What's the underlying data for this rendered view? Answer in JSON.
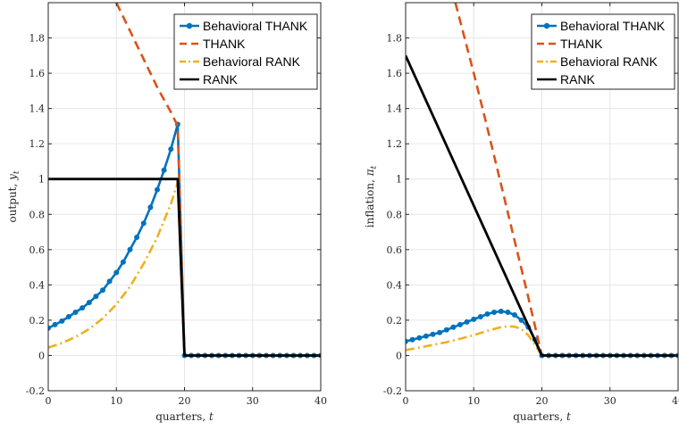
{
  "chart_data": [
    {
      "type": "line",
      "xlabel": "quarters, t",
      "ylabel": "output, y_t",
      "xlim": [
        0,
        40
      ],
      "ylim": [
        -0.2,
        2.0
      ],
      "xticks": [
        0,
        10,
        20,
        30,
        40
      ],
      "yticks": [
        -0.2,
        0,
        0.2,
        0.4,
        0.6,
        0.8,
        1,
        1.2,
        1.4,
        1.6,
        1.8
      ],
      "ytick_labels": [
        "-0.2",
        "0",
        "0.2",
        "0.4",
        "0.6",
        "0.8",
        "1",
        "1.2",
        "1.4",
        "1.6",
        "1.8"
      ],
      "grid": true,
      "legend_position": "top-right",
      "series": [
        {
          "name": "Behavioral THANK",
          "color": "#0072BD",
          "style": "solid-markers",
          "x": [
            0,
            1,
            2,
            3,
            4,
            5,
            6,
            7,
            8,
            9,
            10,
            11,
            12,
            13,
            14,
            15,
            16,
            17,
            18,
            19,
            20,
            21,
            22,
            23,
            24,
            25,
            26,
            27,
            28,
            29,
            30,
            31,
            32,
            33,
            34,
            35,
            36,
            37,
            38,
            39,
            40
          ],
          "y": [
            0.155,
            0.175,
            0.195,
            0.22,
            0.245,
            0.27,
            0.3,
            0.335,
            0.37,
            0.42,
            0.47,
            0.53,
            0.6,
            0.67,
            0.75,
            0.84,
            0.94,
            1.05,
            1.17,
            1.31,
            0,
            0,
            0,
            0,
            0,
            0,
            0,
            0,
            0,
            0,
            0,
            0,
            0,
            0,
            0,
            0,
            0,
            0,
            0,
            0,
            0
          ]
        },
        {
          "name": "THANK",
          "color": "#D95319",
          "style": "dashed",
          "x": [
            10,
            12,
            14,
            16,
            18,
            19,
            20
          ],
          "y": [
            2.0,
            1.84,
            1.68,
            1.52,
            1.38,
            1.3,
            0
          ]
        },
        {
          "name": "Behavioral RANK",
          "color": "#EDB120",
          "style": "dashdot",
          "x": [
            0,
            2,
            4,
            6,
            8,
            10,
            12,
            14,
            16,
            18,
            19,
            20
          ],
          "y": [
            0.045,
            0.07,
            0.105,
            0.15,
            0.21,
            0.29,
            0.39,
            0.52,
            0.67,
            0.86,
            0.98,
            0
          ]
        },
        {
          "name": "RANK",
          "color": "#000000",
          "style": "solid",
          "x": [
            0,
            19,
            20,
            40
          ],
          "y": [
            1,
            1,
            0,
            0
          ]
        }
      ]
    },
    {
      "type": "line",
      "xlabel": "quarters, t",
      "ylabel": "inflation, π_t",
      "xlim": [
        0,
        40
      ],
      "ylim": [
        -0.2,
        2.0
      ],
      "xticks": [
        0,
        10,
        20,
        30,
        40
      ],
      "yticks": [
        -0.2,
        0,
        0.2,
        0.4,
        0.6,
        0.8,
        1,
        1.2,
        1.4,
        1.6,
        1.8
      ],
      "ytick_labels": [
        "-0.2",
        "0",
        "0.2",
        "0.4",
        "0.6",
        "0.8",
        "1",
        "1.2",
        "1.4",
        "1.6",
        "1.8"
      ],
      "grid": true,
      "legend_position": "top-right",
      "series": [
        {
          "name": "Behavioral THANK",
          "color": "#0072BD",
          "style": "solid-markers",
          "x": [
            0,
            1,
            2,
            3,
            4,
            5,
            6,
            7,
            8,
            9,
            10,
            11,
            12,
            13,
            14,
            15,
            16,
            17,
            18,
            19,
            20,
            21,
            22,
            23,
            24,
            25,
            26,
            27,
            28,
            29,
            30,
            31,
            32,
            33,
            34,
            35,
            36,
            37,
            38,
            39,
            40
          ],
          "y": [
            0.08,
            0.09,
            0.1,
            0.11,
            0.12,
            0.13,
            0.145,
            0.16,
            0.175,
            0.19,
            0.205,
            0.22,
            0.235,
            0.245,
            0.25,
            0.245,
            0.23,
            0.2,
            0.16,
            0.09,
            0,
            0,
            0,
            0,
            0,
            0,
            0,
            0,
            0,
            0,
            0,
            0,
            0,
            0,
            0,
            0,
            0,
            0,
            0,
            0,
            0
          ]
        },
        {
          "name": "THANK",
          "color": "#D95319",
          "style": "dashed",
          "x": [
            7.3,
            10,
            12,
            14,
            16,
            18,
            20
          ],
          "y": [
            2.0,
            1.6,
            1.29,
            0.97,
            0.65,
            0.33,
            0
          ]
        },
        {
          "name": "Behavioral RANK",
          "color": "#EDB120",
          "style": "dashdot",
          "x": [
            0,
            2,
            4,
            6,
            8,
            10,
            12,
            14,
            15,
            16,
            17,
            18,
            19,
            20
          ],
          "y": [
            0.03,
            0.045,
            0.06,
            0.075,
            0.095,
            0.115,
            0.14,
            0.16,
            0.165,
            0.163,
            0.15,
            0.115,
            0.06,
            0
          ]
        },
        {
          "name": "RANK",
          "color": "#000000",
          "style": "solid",
          "x": [
            0,
            20,
            40
          ],
          "y": [
            1.7,
            0,
            0
          ]
        }
      ]
    }
  ]
}
